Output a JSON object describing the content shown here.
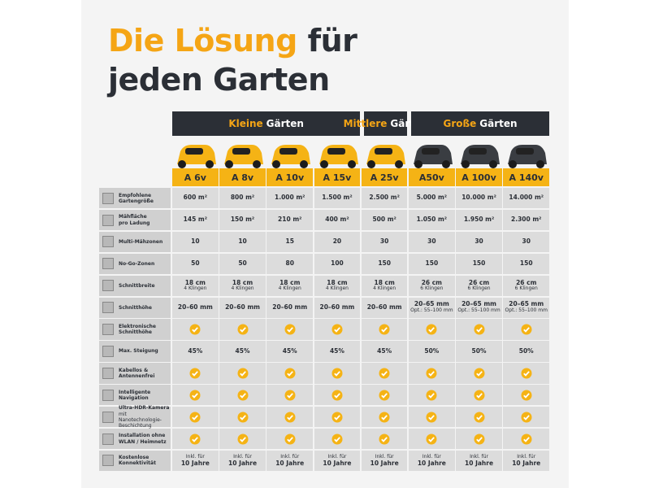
{
  "title": {
    "highlight": "Die Lösung",
    "rest": "für",
    "line2": "jeden Garten"
  },
  "groups": [
    {
      "accent": "Kleine",
      "label": "Gärten",
      "columns": 4
    },
    {
      "accent": "Mittlere",
      "label": "Gärten",
      "columns": 1
    },
    {
      "accent": "Große",
      "label": "Gärten",
      "columns": 3
    }
  ],
  "models": [
    {
      "name": "A 6v",
      "color": "#f5b315"
    },
    {
      "name": "A 8v",
      "color": "#f5b315"
    },
    {
      "name": "A 10v",
      "color": "#f5b315"
    },
    {
      "name": "A 15v",
      "color": "#f5b315"
    },
    {
      "name": "A 25v",
      "color": "#f5b315"
    },
    {
      "name": "A50v",
      "color": "#3a3d42"
    },
    {
      "name": "A 100v",
      "color": "#3a3d42"
    },
    {
      "name": "A 140v",
      "color": "#3a3d42"
    }
  ],
  "rows": [
    {
      "label": [
        "Empfohlene",
        "Gartengröße"
      ],
      "cells": [
        "600 m²",
        "800 m²",
        "1.000 m²",
        "1.500 m²",
        "2.500 m²",
        "5.000 m²",
        "10.000 m²",
        "14.000 m²"
      ]
    },
    {
      "label": [
        "Mähfläche",
        "pro Ladung"
      ],
      "cells": [
        "145 m²",
        "150 m²",
        "210 m²",
        "400 m²",
        "500 m²",
        "1.050 m²",
        "1.950 m²",
        "2.300 m²"
      ]
    },
    {
      "label": [
        "Multi-Mähzonen"
      ],
      "cells": [
        "10",
        "10",
        "15",
        "20",
        "30",
        "30",
        "30",
        "30"
      ]
    },
    {
      "label": [
        "No-Go-Zonen"
      ],
      "cells": [
        "50",
        "50",
        "80",
        "100",
        "150",
        "150",
        "150",
        "150"
      ]
    },
    {
      "label": [
        "Schnittbreite"
      ],
      "cells": [
        [
          "18 cm",
          "4 Klingen"
        ],
        [
          "18 cm",
          "4 Klingen"
        ],
        [
          "18 cm",
          "4 Klingen"
        ],
        [
          "18 cm",
          "4 Klingen"
        ],
        [
          "18 cm",
          "4 Klingen"
        ],
        [
          "26 cm",
          "6 Klingen"
        ],
        [
          "26 cm",
          "6 Klingen"
        ],
        [
          "26 cm",
          "6 Klingen"
        ]
      ]
    },
    {
      "label": [
        "Schnitthöhe"
      ],
      "cells": [
        "20–60 mm",
        "20–60 mm",
        "20–60 mm",
        "20–60 mm",
        "20–60 mm",
        [
          "20–65 mm",
          "Opt.: 55–100 mm"
        ],
        [
          "20–65 mm",
          "Opt.: 55–100 mm"
        ],
        [
          "20–65 mm",
          "Opt.: 55–100 mm"
        ]
      ]
    },
    {
      "label": [
        "Elektronische",
        "Schnitthöhe"
      ],
      "cells": [
        true,
        true,
        true,
        true,
        true,
        true,
        true,
        true
      ]
    },
    {
      "label": [
        "Max. Steigung"
      ],
      "cells": [
        "45%",
        "45%",
        "45%",
        "45%",
        "45%",
        "50%",
        "50%",
        "50%"
      ]
    },
    {
      "label": [
        "Kabellos &",
        "Antennenfrei"
      ],
      "cells": [
        true,
        true,
        true,
        true,
        true,
        true,
        true,
        true
      ]
    },
    {
      "label": [
        "Intelligente",
        "Navigation"
      ],
      "cells": [
        true,
        true,
        true,
        true,
        true,
        true,
        true,
        true
      ]
    },
    {
      "label": [
        "Ultra-HDR-Kamera",
        "mit Nanotechnologie-",
        "Beschichtung"
      ],
      "cells": [
        true,
        true,
        true,
        true,
        true,
        true,
        true,
        true
      ]
    },
    {
      "label": [
        "Installation ohne",
        "WLAN / Heimnetz"
      ],
      "cells": [
        true,
        true,
        true,
        true,
        true,
        true,
        true,
        true
      ]
    },
    {
      "label": [
        "Kostenlose",
        "Konnektivität"
      ],
      "cells": [
        [
          "Inkl. für",
          "10 Jahre"
        ],
        [
          "Inkl. für",
          "10 Jahre"
        ],
        [
          "Inkl. für",
          "10 Jahre"
        ],
        [
          "Inkl. für",
          "10 Jahre"
        ],
        [
          "Inkl. für",
          "10 Jahre"
        ],
        [
          "Inkl. für",
          "10 Jahre"
        ],
        [
          "Inkl. für",
          "10 Jahre"
        ],
        [
          "Inkl. für",
          "10 Jahre"
        ]
      ]
    }
  ]
}
